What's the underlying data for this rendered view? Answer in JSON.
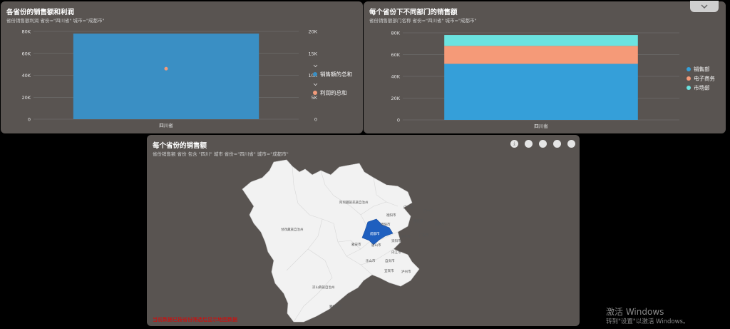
{
  "charts": [
    {
      "title": "各省份的销售额和利润",
      "subtitle": "省份销售额利润 省份=\"四川省\" 城市=\"成都市\""
    },
    {
      "title": "每个省份下不同部门的销售额",
      "subtitle": "省份销售额部门名称 省份=\"四川省\" 城市=\"成都市\""
    }
  ],
  "map": {
    "title": "每个省份的销售额",
    "subtitle": "省份销售额 省份 包含 \"四川\" 城市 省份=\"四川省\" 城市=\"成都市\"",
    "footnote": "当前数据已按省份筛选后显示地图数据",
    "highlight_color": "#1f5fbf",
    "region_color": "#f2f2f2",
    "tool_icons": [
      "download-icon",
      "filter-icon",
      "zoom-in-icon",
      "zoom-out-icon",
      "reset-icon"
    ],
    "city_labels": [
      "阿坝藏族羌族自治州",
      "甘孜藏族自治州",
      "凉山彝族自治州",
      "成都市",
      "德阳市",
      "绵阳市",
      "广元市",
      "巴中市",
      "达州市",
      "南充市",
      "广安市",
      "遂宁市",
      "资阳市",
      "内江市",
      "自贡市",
      "乐山市",
      "眉山市",
      "雅安市",
      "宜宾市",
      "泸州市",
      "攀枝花市"
    ]
  },
  "collapse_icon": "chevron-down-icon",
  "watermark": {
    "line1": "激活 Windows",
    "line2": "转到\"设置\"以激活 Windows。"
  },
  "chart_data": [
    {
      "type": "bar",
      "categories": [
        "四川省"
      ],
      "series": [
        {
          "name": "销售额的总和",
          "values": [
            78000
          ],
          "color": "#3a8fc4"
        },
        {
          "name": "利润的总和",
          "values": [
            11500
          ],
          "color": "#f29b7b",
          "axis": "right",
          "mark": "point"
        }
      ],
      "ylim": [
        0,
        80000
      ],
      "yticks": [
        "0",
        "20K",
        "40K",
        "60K",
        "80K"
      ],
      "y2lim": [
        0,
        20000
      ],
      "y2ticks": [
        "0",
        "5K",
        "10K",
        "15K",
        "20K"
      ],
      "legend": "right"
    },
    {
      "type": "bar",
      "stacked": true,
      "categories": [
        "四川省"
      ],
      "series": [
        {
          "name": "销售部",
          "values": [
            51500
          ],
          "color": "#359fd9"
        },
        {
          "name": "电子商务",
          "values": [
            16500
          ],
          "color": "#f59a78"
        },
        {
          "name": "市场部",
          "values": [
            10000
          ],
          "color": "#6be3e0"
        }
      ],
      "ylim": [
        0,
        80000
      ],
      "yticks": [
        "0",
        "20K",
        "40K",
        "60K",
        "80K"
      ],
      "legend": "right"
    }
  ]
}
